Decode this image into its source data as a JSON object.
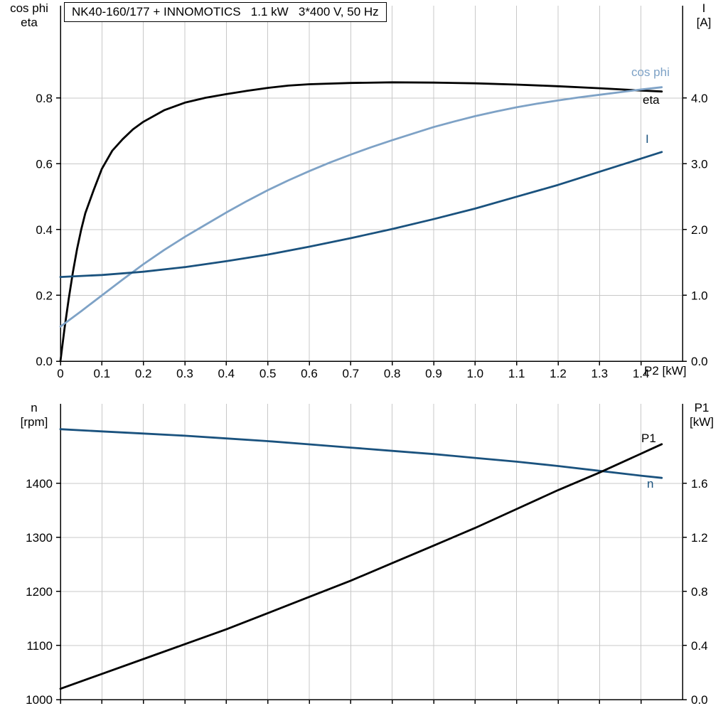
{
  "title_box": "NK40-160/177 + INNOMOTICS   1.1 kW   3*400 V, 50 Hz",
  "labels": {
    "top_left_line1": "cos phi",
    "top_left_line2": "eta",
    "top_right_line1": "I",
    "top_right_line2": "[A]",
    "x_axis_label": "P2 [kW]",
    "bottom_left_line1": "n",
    "bottom_left_line2": "[rpm]",
    "bottom_right_line1": "P1",
    "bottom_right_line2": "[kW]",
    "curve_cos_phi": "cos phi",
    "curve_eta": "eta",
    "curve_I": "I",
    "curve_n": "n",
    "curve_P1": "P1"
  },
  "colors": {
    "axis": "#000000",
    "grid": "#c8c8c8",
    "eta": "#000000",
    "cos_phi": "#7EA2C6",
    "current": "#1A527E",
    "speed": "#1A527E",
    "p1": "#000000"
  },
  "chart_data": [
    {
      "type": "line",
      "title": "NK40-160/177 + INNOMOTICS   1.1 kW   3*400 V, 50 Hz",
      "x_axis": {
        "label": "P2 [kW]",
        "min": 0,
        "max": 1.5,
        "show_tick_labels": true,
        "ticks": [
          "0",
          "0.1",
          "0.2",
          "0.3",
          "0.4",
          "0.5",
          "0.6",
          "0.7",
          "0.8",
          "0.9",
          "1.0",
          "1.1",
          "1.2",
          "1.3",
          "1.4"
        ]
      },
      "y_left": {
        "label": "cos phi / eta",
        "min": 0,
        "max": 1.081,
        "ticks": [
          "0.0",
          "0.2",
          "0.4",
          "0.6",
          "0.8"
        ]
      },
      "y_right": {
        "label": "I [A]",
        "min": 0,
        "max": 5.405,
        "ticks": [
          "0.0",
          "1.0",
          "2.0",
          "3.0",
          "4.0"
        ]
      },
      "grid": true,
      "series": [
        {
          "name": "eta",
          "label": "eta",
          "axis": "left",
          "color": "#000000",
          "points": [
            [
              0,
              0
            ],
            [
              0.01,
              0.1
            ],
            [
              0.02,
              0.19
            ],
            [
              0.03,
              0.27
            ],
            [
              0.04,
              0.34
            ],
            [
              0.05,
              0.4
            ],
            [
              0.06,
              0.45
            ],
            [
              0.08,
              0.52
            ],
            [
              0.1,
              0.585
            ],
            [
              0.125,
              0.64
            ],
            [
              0.15,
              0.675
            ],
            [
              0.175,
              0.705
            ],
            [
              0.2,
              0.728
            ],
            [
              0.25,
              0.763
            ],
            [
              0.3,
              0.786
            ],
            [
              0.35,
              0.801
            ],
            [
              0.4,
              0.812
            ],
            [
              0.45,
              0.822
            ],
            [
              0.5,
              0.831
            ],
            [
              0.55,
              0.838
            ],
            [
              0.6,
              0.842
            ],
            [
              0.7,
              0.846
            ],
            [
              0.8,
              0.848
            ],
            [
              0.9,
              0.847
            ],
            [
              1.0,
              0.845
            ],
            [
              1.1,
              0.841
            ],
            [
              1.2,
              0.836
            ],
            [
              1.3,
              0.83
            ],
            [
              1.4,
              0.823
            ],
            [
              1.45,
              0.82
            ]
          ]
        },
        {
          "name": "cos_phi",
          "label": "cos phi",
          "axis": "left",
          "color": "#7EA2C6",
          "points": [
            [
              0,
              0.105
            ],
            [
              0.05,
              0.152
            ],
            [
              0.1,
              0.2
            ],
            [
              0.15,
              0.248
            ],
            [
              0.2,
              0.295
            ],
            [
              0.25,
              0.338
            ],
            [
              0.3,
              0.378
            ],
            [
              0.35,
              0.415
            ],
            [
              0.4,
              0.452
            ],
            [
              0.45,
              0.487
            ],
            [
              0.5,
              0.52
            ],
            [
              0.55,
              0.55
            ],
            [
              0.6,
              0.578
            ],
            [
              0.65,
              0.604
            ],
            [
              0.7,
              0.628
            ],
            [
              0.75,
              0.651
            ],
            [
              0.8,
              0.672
            ],
            [
              0.85,
              0.692
            ],
            [
              0.9,
              0.712
            ],
            [
              0.95,
              0.729
            ],
            [
              1.0,
              0.745
            ],
            [
              1.05,
              0.759
            ],
            [
              1.1,
              0.772
            ],
            [
              1.15,
              0.783
            ],
            [
              1.2,
              0.793
            ],
            [
              1.25,
              0.802
            ],
            [
              1.3,
              0.81
            ],
            [
              1.35,
              0.818
            ],
            [
              1.4,
              0.826
            ],
            [
              1.45,
              0.833
            ]
          ]
        },
        {
          "name": "I",
          "label": "I",
          "axis": "right",
          "color": "#1A527E",
          "points": [
            [
              0,
              1.28
            ],
            [
              0.1,
              1.31
            ],
            [
              0.2,
              1.36
            ],
            [
              0.3,
              1.43
            ],
            [
              0.4,
              1.52
            ],
            [
              0.5,
              1.62
            ],
            [
              0.6,
              1.74
            ],
            [
              0.7,
              1.87
            ],
            [
              0.8,
              2.01
            ],
            [
              0.9,
              2.16
            ],
            [
              1.0,
              2.32
            ],
            [
              1.1,
              2.5
            ],
            [
              1.2,
              2.68
            ],
            [
              1.3,
              2.88
            ],
            [
              1.4,
              3.08
            ],
            [
              1.45,
              3.18
            ]
          ]
        }
      ]
    },
    {
      "type": "line",
      "title": "",
      "x_axis": {
        "label": "P2 [kW]",
        "min": 0,
        "max": 1.5,
        "show_tick_labels": false,
        "ticks": [
          "0",
          "0.1",
          "0.2",
          "0.3",
          "0.4",
          "0.5",
          "0.6",
          "0.7",
          "0.8",
          "0.9",
          "1.0",
          "1.1",
          "1.2",
          "1.3",
          "1.4"
        ]
      },
      "y_left": {
        "label": "n [rpm]",
        "min": 1000,
        "max": 1547,
        "ticks": [
          "1000",
          "1100",
          "1200",
          "1300",
          "1400"
        ]
      },
      "y_right": {
        "label": "P1 [kW]",
        "min": 0,
        "max": 2.189,
        "ticks": [
          "0.0",
          "0.4",
          "0.8",
          "1.2",
          "1.6"
        ]
      },
      "grid": true,
      "series": [
        {
          "name": "n",
          "label": "n",
          "axis": "left",
          "color": "#1A527E",
          "points": [
            [
              0,
              1500
            ],
            [
              0.1,
              1496
            ],
            [
              0.2,
              1492
            ],
            [
              0.3,
              1488
            ],
            [
              0.4,
              1483
            ],
            [
              0.5,
              1478
            ],
            [
              0.6,
              1472
            ],
            [
              0.7,
              1466
            ],
            [
              0.8,
              1460
            ],
            [
              0.9,
              1454
            ],
            [
              1.0,
              1447
            ],
            [
              1.1,
              1440
            ],
            [
              1.2,
              1432
            ],
            [
              1.3,
              1423
            ],
            [
              1.4,
              1414
            ],
            [
              1.45,
              1410
            ]
          ]
        },
        {
          "name": "P1",
          "label": "P1",
          "axis": "right",
          "color": "#000000",
          "points": [
            [
              0,
              0.08
            ],
            [
              0.1,
              0.19
            ],
            [
              0.2,
              0.3
            ],
            [
              0.3,
              0.41
            ],
            [
              0.4,
              0.52
            ],
            [
              0.5,
              0.64
            ],
            [
              0.6,
              0.76
            ],
            [
              0.7,
              0.88
            ],
            [
              0.8,
              1.01
            ],
            [
              0.9,
              1.14
            ],
            [
              1.0,
              1.27
            ],
            [
              1.1,
              1.41
            ],
            [
              1.2,
              1.55
            ],
            [
              1.3,
              1.68
            ],
            [
              1.4,
              1.82
            ],
            [
              1.45,
              1.89
            ]
          ]
        }
      ]
    }
  ]
}
